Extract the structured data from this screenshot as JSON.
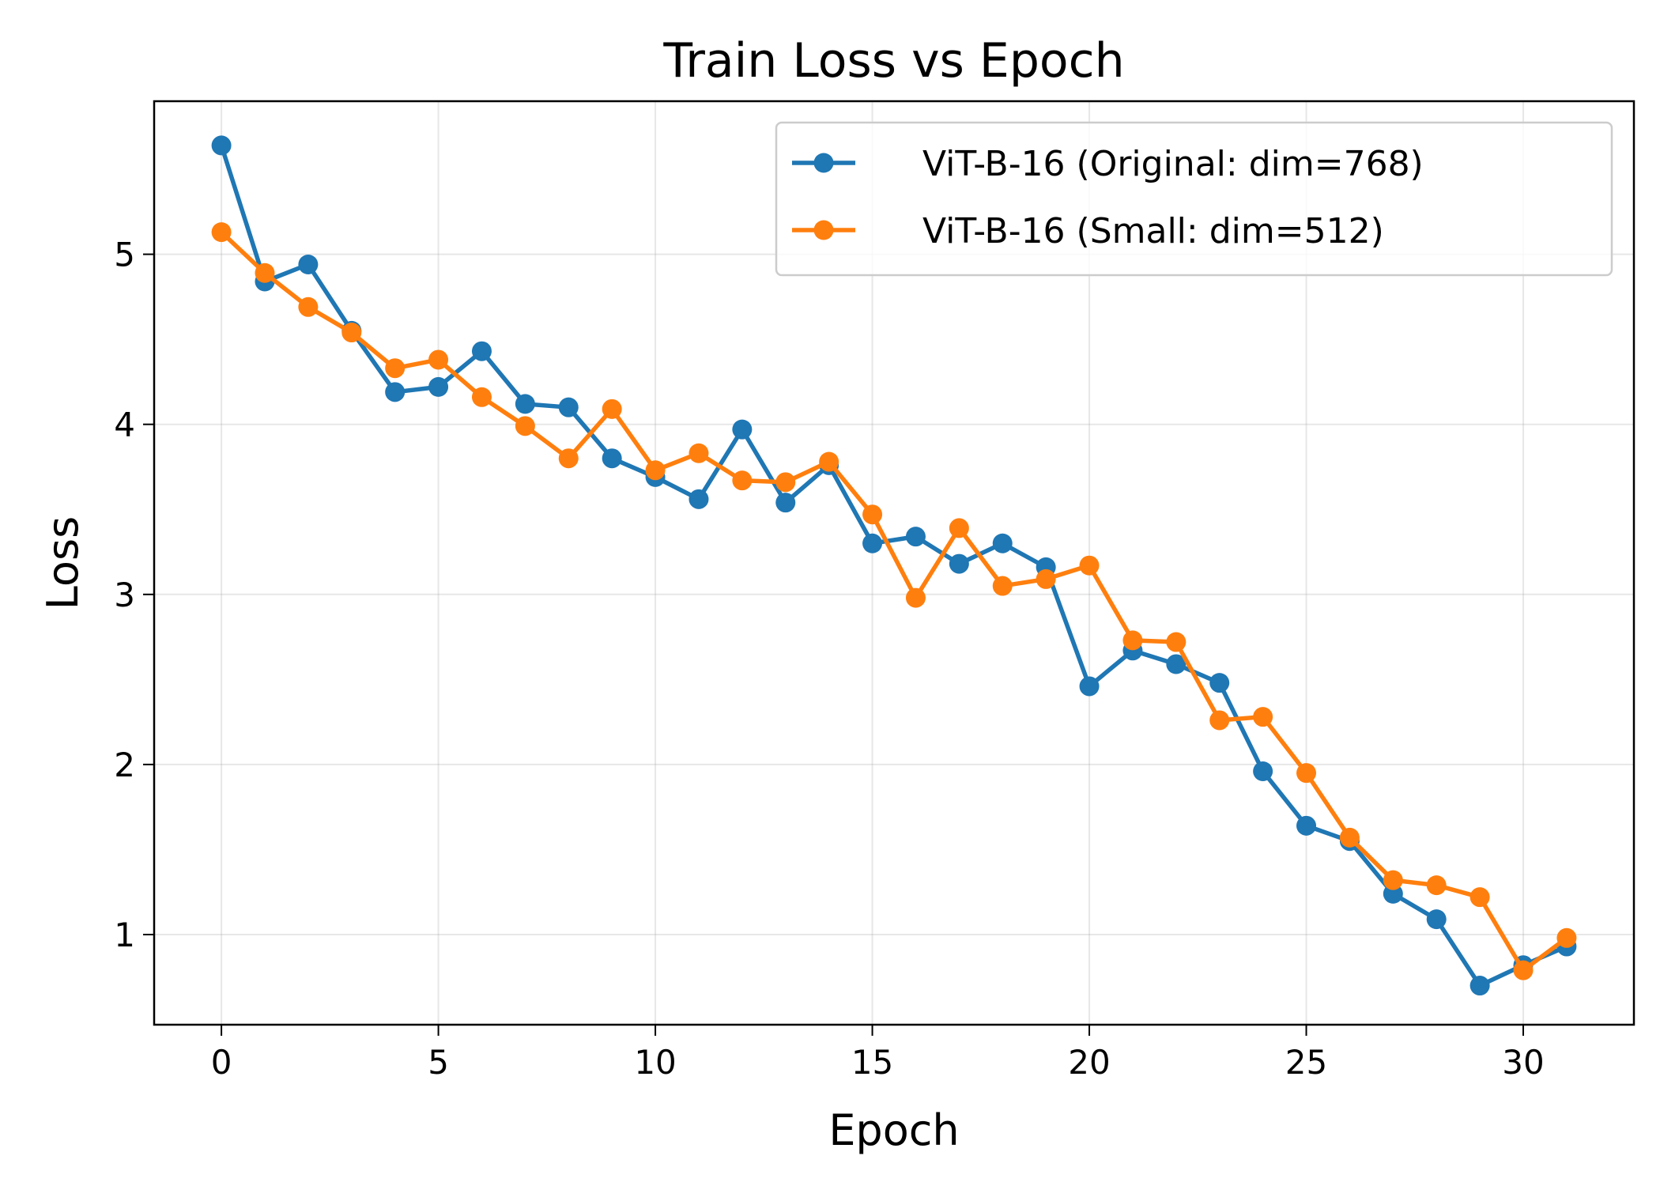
{
  "chart_data": {
    "type": "line",
    "title": "Train Loss vs Epoch",
    "xlabel": "Epoch",
    "ylabel": "Loss",
    "xlim": [
      -1.55,
      32.55
    ],
    "ylim": [
      0.47,
      5.9
    ],
    "xticks": [
      0,
      5,
      10,
      15,
      20,
      25,
      30
    ],
    "yticks": [
      1,
      2,
      3,
      4,
      5
    ],
    "grid": true,
    "legend_position": "top-right",
    "x": [
      0,
      1,
      2,
      3,
      4,
      5,
      6,
      7,
      8,
      9,
      10,
      11,
      12,
      13,
      14,
      15,
      16,
      17,
      18,
      19,
      20,
      21,
      22,
      23,
      24,
      25,
      26,
      27,
      28,
      29,
      30,
      31
    ],
    "series": [
      {
        "name": "ViT-B-16 (Original: dim=768)",
        "color": "#1f77b4",
        "values": [
          5.64,
          4.84,
          4.94,
          4.55,
          4.19,
          4.22,
          4.43,
          4.12,
          4.1,
          3.8,
          3.69,
          3.56,
          3.97,
          3.54,
          3.76,
          3.3,
          3.34,
          3.18,
          3.3,
          3.16,
          2.46,
          2.67,
          2.59,
          2.48,
          1.96,
          1.64,
          1.55,
          1.24,
          1.09,
          0.7,
          0.82,
          0.93
        ]
      },
      {
        "name": "ViT-B-16 (Small: dim=512)",
        "color": "#ff7f0e",
        "values": [
          5.13,
          4.89,
          4.69,
          4.54,
          4.33,
          4.38,
          4.16,
          3.99,
          3.8,
          4.09,
          3.73,
          3.83,
          3.67,
          3.66,
          3.78,
          3.47,
          2.98,
          3.39,
          3.05,
          3.09,
          3.17,
          2.73,
          2.72,
          2.26,
          2.28,
          1.95,
          1.57,
          1.32,
          1.29,
          1.22,
          0.79,
          0.98
        ]
      }
    ]
  }
}
